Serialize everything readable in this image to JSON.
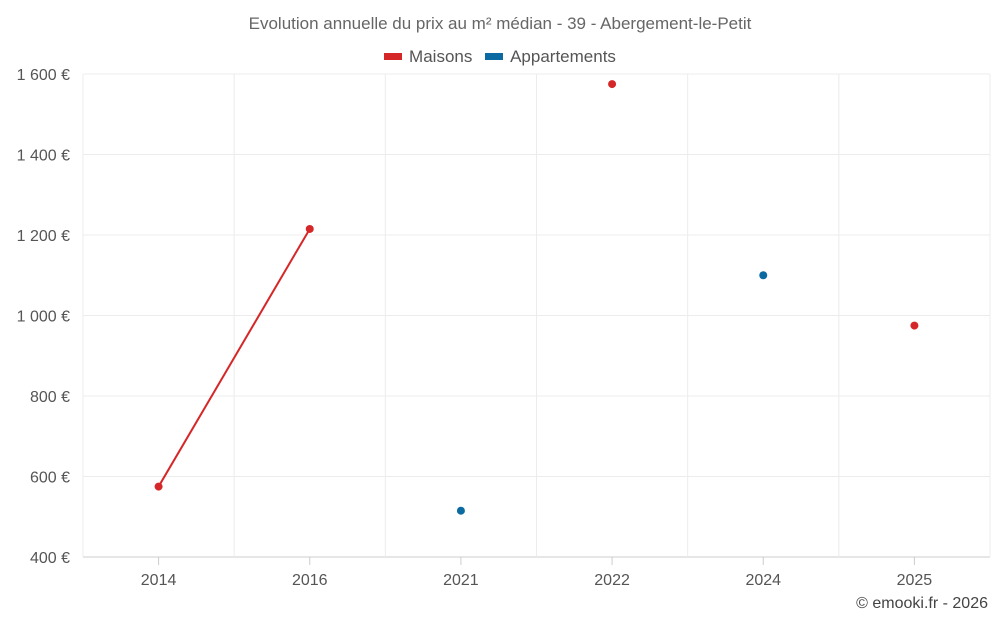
{
  "chart_data": {
    "type": "line",
    "title": "Evolution annuelle du prix au m² médian - 39 - Abergement-le-Petit",
    "categories": [
      "2014",
      "2016",
      "2021",
      "2022",
      "2024",
      "2025"
    ],
    "series": [
      {
        "name": "Maisons",
        "color": "#d62728",
        "values": [
          575,
          1215,
          null,
          1575,
          null,
          975
        ]
      },
      {
        "name": "Appartements",
        "color": "#0a6aa1",
        "values": [
          null,
          null,
          515,
          null,
          1100,
          null
        ]
      }
    ],
    "ylim": [
      400,
      1600
    ],
    "yticks": [
      400,
      600,
      800,
      1000,
      1200,
      1400,
      1600
    ],
    "ytick_labels": [
      "400 €",
      "600 €",
      "800 €",
      "1 000 €",
      "1 200 €",
      "1 400 €",
      "1 600 €"
    ],
    "xlabel": "",
    "ylabel": "",
    "grid": true,
    "legend_position": "top-center"
  },
  "footer": {
    "credit": "© emooki.fr - 2026"
  }
}
